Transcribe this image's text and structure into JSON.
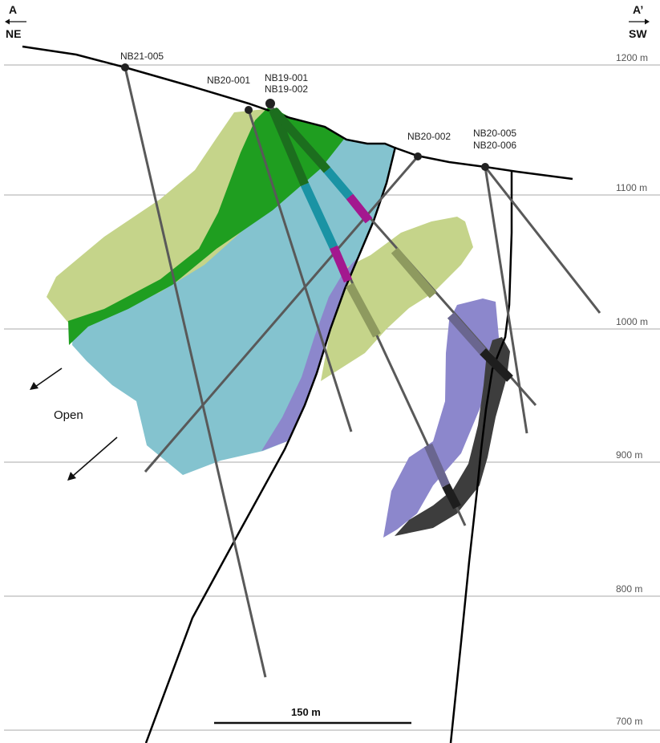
{
  "direction": {
    "left_letter": "A",
    "left_dir": "NE",
    "right_letter": "A’",
    "right_dir": "SW"
  },
  "elevations": [
    "1200 m",
    "1100 m",
    "1000 m",
    "900 m",
    "800 m",
    "700 m"
  ],
  "drillholes": {
    "nb21_005": "NB21-005",
    "nb20_001": "NB20-001",
    "nb19_001": "NB19-001",
    "nb19_002": "NB19-002",
    "nb20_002": "NB20-002",
    "nb20_005": "NB20-005",
    "nb20_006": "NB20-006"
  },
  "open_label": "Open",
  "scale_bar": "150 m",
  "colors": {
    "light_green": "#c5d48a",
    "green": "#1f9e20",
    "cyan": "#84c3cf",
    "purple": "#8c87cc",
    "dark_grey": "#3d3d3d",
    "magenta": "#a3188f",
    "teal": "#1a93a4",
    "dark_green": "#1c6e1e",
    "hole": "#595959",
    "fault": "#000000",
    "gridline": "#aaaaaa"
  }
}
